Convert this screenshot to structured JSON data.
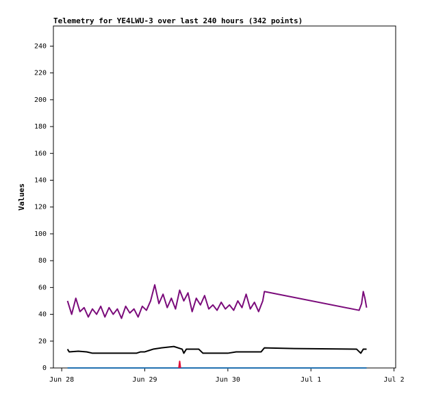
{
  "chart_data": {
    "type": "line",
    "title": "Telemetry for YE4LWU-3 over last 240 hours (342 points)",
    "y_label": "Values",
    "xlim": [
      -0.1,
      4.02
    ],
    "xticks": [
      {
        "value": 0,
        "label": "Jun 28"
      },
      {
        "value": 1,
        "label": "Jun 29"
      },
      {
        "value": 2,
        "label": "Jun 30"
      },
      {
        "value": 3,
        "label": "Jul 1"
      },
      {
        "value": 4,
        "label": "Jul 2"
      }
    ],
    "ylim": [
      0,
      255
    ],
    "yticks": [
      0,
      20,
      40,
      60,
      80,
      100,
      120,
      140,
      160,
      180,
      200,
      220,
      240
    ],
    "grid": false,
    "series": [
      {
        "color": "#7a0a7a",
        "x": [
          0.07,
          0.12,
          0.17,
          0.22,
          0.27,
          0.32,
          0.37,
          0.42,
          0.47,
          0.52,
          0.57,
          0.62,
          0.67,
          0.72,
          0.77,
          0.82,
          0.87,
          0.92,
          0.97,
          1.02,
          1.07,
          1.12,
          1.17,
          1.22,
          1.27,
          1.32,
          1.37,
          1.42,
          1.47,
          1.52,
          1.57,
          1.62,
          1.67,
          1.72,
          1.77,
          1.82,
          1.87,
          1.92,
          1.97,
          2.02,
          2.07,
          2.12,
          2.17,
          2.22,
          2.27,
          2.32,
          2.37,
          2.42,
          2.44,
          3.58,
          3.61,
          3.63,
          3.65,
          3.67
        ],
        "values": [
          50,
          40,
          52,
          42,
          45,
          38,
          44,
          40,
          46,
          38,
          45,
          40,
          44,
          37,
          46,
          41,
          44,
          38,
          46,
          43,
          50,
          62,
          48,
          55,
          45,
          52,
          44,
          58,
          50,
          56,
          42,
          52,
          47,
          54,
          44,
          47,
          43,
          49,
          44,
          47,
          43,
          50,
          45,
          55,
          44,
          49,
          42,
          50,
          57,
          43,
          48,
          57,
          52,
          45
        ]
      },
      {
        "color": "#000000",
        "x": [
          0.07,
          0.09,
          0.2,
          0.3,
          0.37,
          0.9,
          0.95,
          1.0,
          1.05,
          1.1,
          1.2,
          1.35,
          1.45,
          1.47,
          1.5,
          1.65,
          1.7,
          2.0,
          2.1,
          2.2,
          2.4,
          2.44,
          2.8,
          3.55,
          3.6,
          3.63,
          3.67
        ],
        "values": [
          14,
          12,
          12.5,
          12,
          11,
          11,
          12,
          12,
          13,
          14,
          15,
          16,
          14,
          11,
          14,
          14,
          11,
          11,
          12,
          12,
          12,
          15,
          14.5,
          14,
          11,
          14,
          14
        ]
      },
      {
        "color": "#1f6fb0",
        "x": [
          0.07,
          0.57,
          1.07,
          1.57,
          2.07,
          2.57,
          3.07,
          3.67
        ],
        "values": [
          0,
          0,
          0,
          0,
          0,
          0,
          0,
          0
        ]
      },
      {
        "color": "#e0103a",
        "x": [
          1.41,
          1.42,
          1.43
        ],
        "values": [
          0,
          5,
          0
        ]
      }
    ]
  }
}
